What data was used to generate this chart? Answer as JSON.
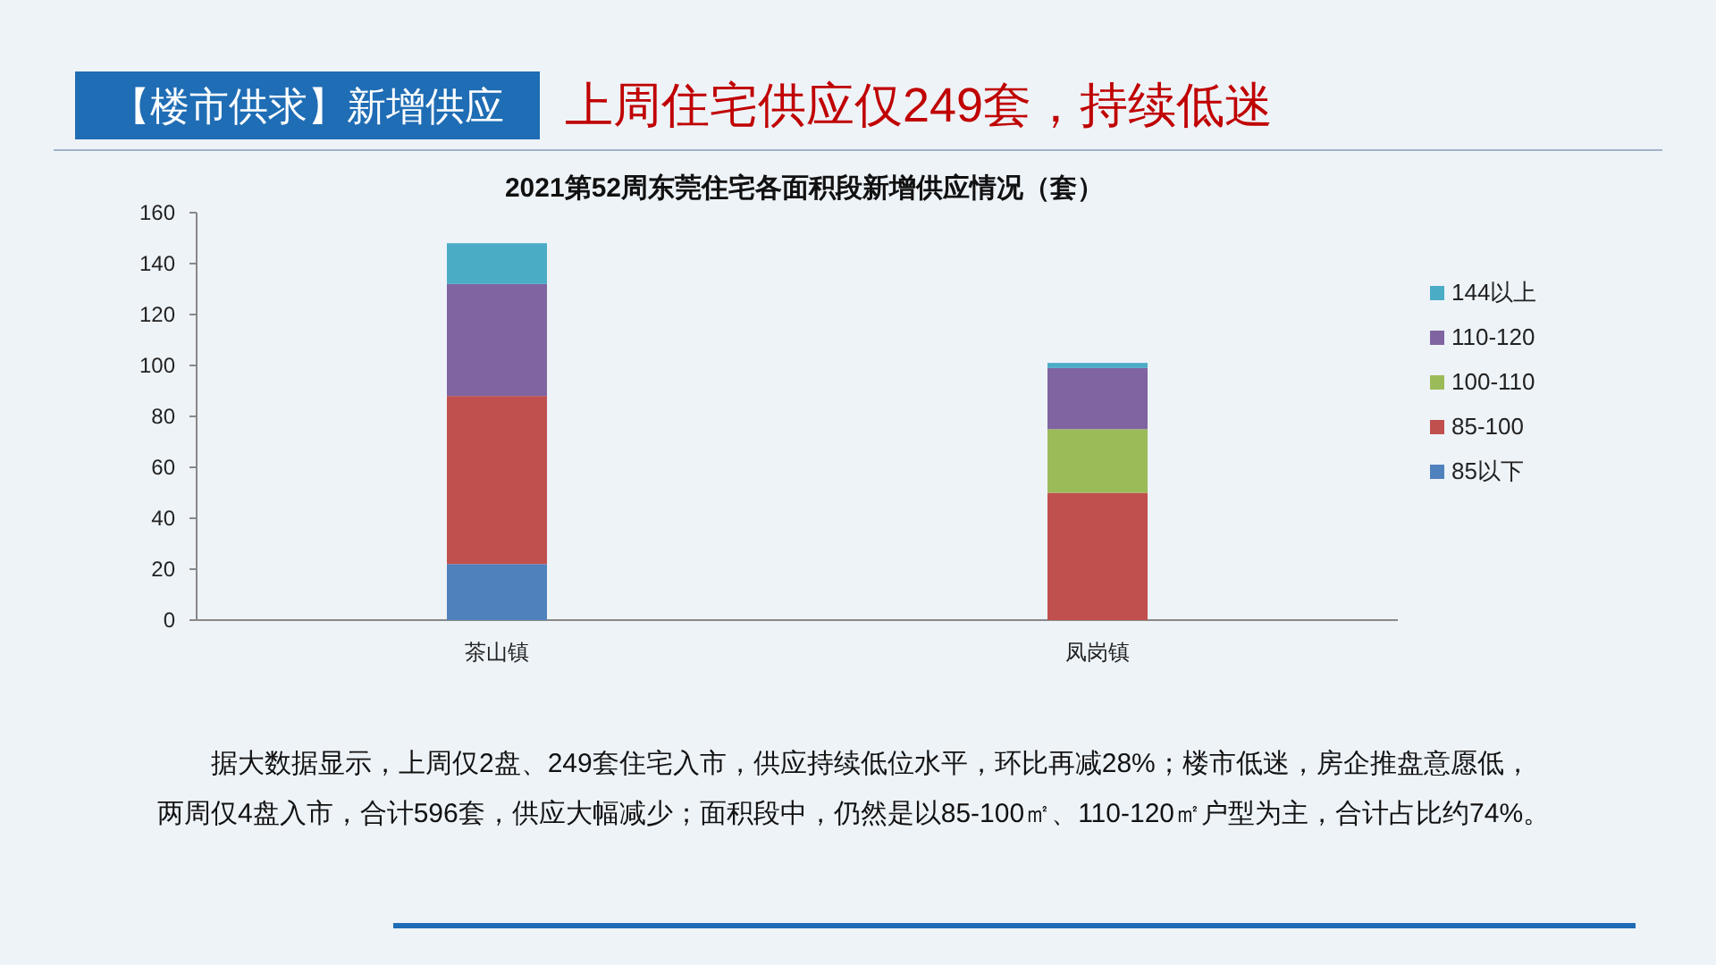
{
  "chart_data": {
    "type": "bar",
    "stacked": true,
    "title": "2021第52周东莞住宅各面积段新增供应情况（套）",
    "subtitle": "上周住宅供应仅249套，持续低迷",
    "annotations": [
      "【楼市供求】新增供应",
      "据大数据显示，上周仅2盘、249套住宅入市，供应持续低位水平，环比再减28%；楼市低迷，房企推盘意愿低，两周仅4盘入市，合计596套，供应大幅减少；面积段中，仍然是以85-100㎡、110-120㎡户型为主，合计占比约74%。"
    ],
    "categories": [
      "茶山镇",
      "凤岗镇"
    ],
    "series": [
      {
        "name": "85以下",
        "color": "#4f81bd",
        "values": [
          22,
          0
        ]
      },
      {
        "name": "85-100",
        "color": "#c0504d",
        "values": [
          66,
          50
        ]
      },
      {
        "name": "100-110",
        "color": "#9bbb59",
        "values": [
          0,
          25
        ]
      },
      {
        "name": "110-120",
        "color": "#8064a2",
        "values": [
          44,
          24
        ]
      },
      {
        "name": "144以上",
        "color": "#4bacc6",
        "values": [
          16,
          2
        ]
      }
    ],
    "ylim": [
      0,
      160
    ],
    "yticks": [
      0,
      20,
      40,
      60,
      80,
      100,
      120,
      140,
      160
    ],
    "grid": false,
    "legend": "right"
  }
}
